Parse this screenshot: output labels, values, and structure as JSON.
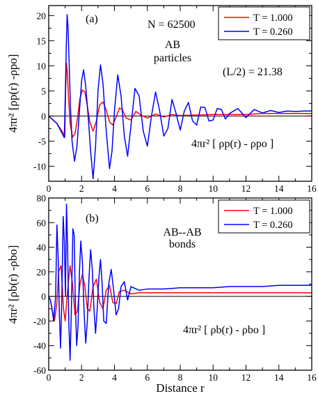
{
  "figure": {
    "xlabel": "Distance   r"
  },
  "chart_data": [
    {
      "panel": "(a)",
      "type": "line",
      "xlim": [
        0,
        16
      ],
      "ylim": [
        -13,
        22
      ],
      "xticks": [
        0,
        2,
        4,
        6,
        8,
        10,
        12,
        14,
        16
      ],
      "xtick_labels": [
        "0",
        "2",
        "4",
        "6",
        "8",
        "10",
        "12",
        "14",
        "16"
      ],
      "yticks": [
        -10,
        -5,
        0,
        5,
        10,
        15,
        20
      ],
      "ytick_labels": [
        "-10",
        "-5",
        "0",
        "5",
        "10",
        "15",
        "20"
      ],
      "ylabel": "4πr² [ρp(r) -ρpo]",
      "annotations": {
        "panel_label": "(a)",
        "n_label": "N = 62500",
        "group_line1": "AB",
        "group_line2": "particles",
        "half_box": "(L/2) = 21.38",
        "formula": "4πr² [ ρp(r) - ρpo ]"
      },
      "legend_position": "top-right",
      "series": [
        {
          "name": "T = 1.000",
          "color": "#ff0000",
          "x": [
            0,
            0.5,
            0.9,
            0.98,
            1.03,
            1.08,
            1.13,
            1.2,
            1.3,
            1.45,
            1.6,
            1.75,
            1.9,
            2.05,
            2.2,
            2.35,
            2.5,
            2.7,
            2.9,
            3.1,
            3.3,
            3.5,
            3.7,
            3.9,
            4.1,
            4.3,
            4.5,
            4.7,
            5.0,
            5.3,
            5.6,
            6.0,
            6.5,
            7.0,
            7.5,
            8.0,
            9.0,
            10.0,
            11.0,
            12.0,
            13.0,
            14.0,
            15.0,
            16.0
          ],
          "y": [
            0,
            -1.5,
            -3.5,
            -4.2,
            5,
            10.5,
            9,
            4,
            -1.5,
            -4.2,
            -3.5,
            -0.5,
            3.5,
            5.2,
            4.8,
            2,
            -1.2,
            -3.0,
            -1.0,
            2.2,
            2.8,
            1.2,
            -1.2,
            -1.8,
            -0.2,
            1.6,
            1.2,
            -0.4,
            -0.8,
            0.9,
            0.2,
            -0.4,
            0.4,
            -0.2,
            0.3,
            0.1,
            0.2,
            0.3,
            0.3,
            0.3,
            0.5,
            0.5,
            0.5,
            0.5
          ]
        },
        {
          "name": "T = 0.260",
          "color": "#0000ff",
          "x": [
            0,
            0.5,
            0.95,
            1.02,
            1.07,
            1.12,
            1.17,
            1.25,
            1.32,
            1.42,
            1.57,
            1.72,
            1.87,
            2.0,
            2.12,
            2.25,
            2.4,
            2.55,
            2.7,
            2.85,
            3.0,
            3.15,
            3.3,
            3.5,
            3.7,
            3.85,
            4.0,
            4.2,
            4.4,
            4.6,
            4.8,
            5.0,
            5.25,
            5.5,
            5.75,
            6.0,
            6.25,
            6.5,
            6.75,
            7.0,
            7.25,
            7.5,
            7.75,
            8.0,
            8.25,
            8.5,
            8.75,
            9.0,
            9.25,
            9.5,
            9.75,
            10.0,
            10.25,
            10.5,
            10.75,
            11.0,
            11.5,
            12.0,
            12.5,
            13.0,
            13.5,
            14.0,
            14.5,
            15.0,
            15.5,
            16.0
          ],
          "y": [
            0,
            -1.5,
            -4.3,
            6,
            14,
            20.2,
            18,
            10,
            2,
            -5,
            -9,
            -6,
            1,
            7,
            9.2,
            6,
            0,
            -7,
            -12.5,
            -6,
            5,
            10.2,
            6.5,
            -3,
            -10.5,
            -7,
            1,
            8.2,
            4,
            -4,
            -8,
            -2,
            5.5,
            4,
            -3,
            -6,
            0,
            4.8,
            1,
            -4,
            -2.5,
            3.3,
            0.5,
            -2.8,
            1,
            2.7,
            -1,
            -1.8,
            1.8,
            1.7,
            -1,
            -0.8,
            1.5,
            1.3,
            -0.6,
            0.5,
            1.5,
            -0.3,
            1.3,
            0.6,
            1.1,
            0.7,
            1.0,
            0.9,
            1.0,
            1.0
          ]
        }
      ]
    },
    {
      "panel": "(b)",
      "type": "line",
      "xlim": [
        0,
        16
      ],
      "ylim": [
        -60,
        80
      ],
      "xticks": [
        0,
        2,
        4,
        6,
        8,
        10,
        12,
        14,
        16
      ],
      "xtick_labels": [
        "0",
        "2",
        "4",
        "6",
        "8",
        "10",
        "12",
        "14",
        "16"
      ],
      "yticks": [
        -60,
        -40,
        -20,
        0,
        20,
        40,
        60,
        80
      ],
      "ytick_labels": [
        "-60",
        "-40",
        "-20",
        "0",
        "20",
        "40",
        "60",
        "80"
      ],
      "ylabel": "4πr² [ρb(r) -ρbo]",
      "annotations": {
        "panel_label": "(b)",
        "group_line1": "AB--AB",
        "group_line2": "bonds",
        "formula": "4πr² [ ρb(r) - ρbo ]"
      },
      "legend_position": "top-right",
      "series": [
        {
          "name": "T = 1.000",
          "color": "#ff0000",
          "x": [
            0,
            0.1,
            0.2,
            0.35,
            0.5,
            0.6,
            0.75,
            0.9,
            1.0,
            1.15,
            1.3,
            1.45,
            1.6,
            1.75,
            1.9,
            2.05,
            2.2,
            2.35,
            2.5,
            2.7,
            2.9,
            3.1,
            3.3,
            3.5,
            3.7,
            3.9,
            4.1,
            4.3,
            4.6,
            5.0,
            5.5,
            6.0,
            7.0,
            8.0,
            9.0,
            10.0,
            11.0,
            12.0,
            13.0,
            14.0,
            15.0,
            16.0
          ],
          "y": [
            0,
            -3,
            -10,
            -20,
            -5,
            20,
            25,
            -10,
            -20,
            5,
            25,
            10,
            -15,
            -12,
            10,
            18,
            8,
            -10,
            -12,
            8,
            14,
            -5,
            -10,
            5,
            9,
            -5,
            -6,
            4,
            5,
            2,
            3,
            3,
            3,
            3,
            3,
            3,
            3,
            3,
            3,
            3,
            3,
            3
          ]
        },
        {
          "name": "T = 0.260",
          "color": "#0000ff",
          "x": [
            0,
            0.1,
            0.2,
            0.3,
            0.42,
            0.5,
            0.58,
            0.65,
            0.72,
            0.8,
            0.88,
            0.95,
            1.02,
            1.08,
            1.15,
            1.22,
            1.3,
            1.38,
            1.47,
            1.55,
            1.62,
            1.7,
            1.78,
            1.87,
            1.95,
            2.05,
            2.15,
            2.25,
            2.35,
            2.45,
            2.55,
            2.65,
            2.75,
            2.85,
            2.95,
            3.05,
            3.15,
            3.25,
            3.35,
            3.5,
            3.65,
            3.8,
            3.95,
            4.1,
            4.25,
            4.4,
            4.6,
            4.8,
            5.0,
            5.5,
            6.0,
            7.0,
            8.0,
            9.0,
            10.0,
            11.0,
            12.0,
            13.0,
            14.0,
            15.0,
            16.0
          ],
          "y": [
            0,
            -3,
            -10,
            -20,
            0,
            58,
            30,
            -15,
            -42,
            0,
            65,
            45,
            0,
            75,
            40,
            -20,
            -52,
            -10,
            55,
            50,
            -5,
            -40,
            -25,
            20,
            45,
            28,
            -12,
            -38,
            -20,
            15,
            38,
            22,
            -10,
            -30,
            -10,
            15,
            30,
            10,
            -20,
            -22,
            10,
            22,
            5,
            -15,
            -10,
            8,
            12,
            -3,
            8,
            5,
            6,
            6,
            7,
            7,
            7,
            8,
            8,
            8,
            9,
            9,
            9
          ]
        }
      ]
    }
  ]
}
